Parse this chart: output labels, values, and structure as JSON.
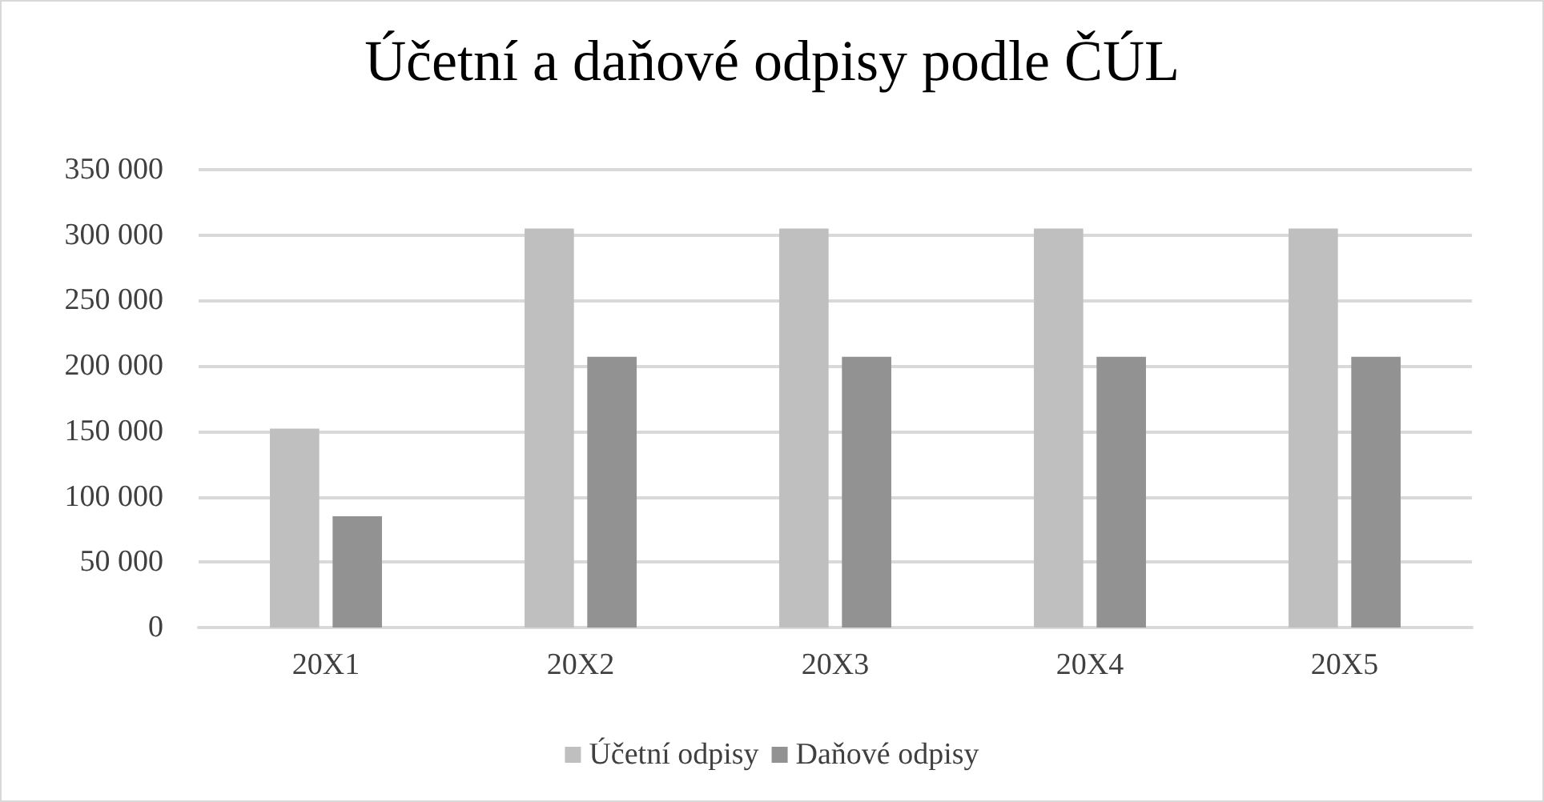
{
  "chart_data": {
    "type": "bar",
    "title": "Účetní a daňové odpisy podle ČÚL",
    "categories": [
      "20X1",
      "20X2",
      "20X3",
      "20X4",
      "20X5"
    ],
    "series": [
      {
        "name": "Účetní odpisy",
        "color": "#bfbfbf",
        "values": [
          152000,
          305000,
          305000,
          305000,
          305000
        ]
      },
      {
        "name": "Daňové odpisy",
        "color": "#929292",
        "values": [
          85000,
          207000,
          207000,
          207000,
          207000
        ]
      }
    ],
    "ylim": [
      0,
      350000
    ],
    "yticks": [
      {
        "value": 0,
        "label": "0"
      },
      {
        "value": 50000,
        "label": "50 000"
      },
      {
        "value": 100000,
        "label": "100 000"
      },
      {
        "value": 150000,
        "label": "150 000"
      },
      {
        "value": 200000,
        "label": "200 000"
      },
      {
        "value": 250000,
        "label": "250 000"
      },
      {
        "value": 300000,
        "label": "300 000"
      },
      {
        "value": 350000,
        "label": "350 000"
      }
    ],
    "grid": "y",
    "legend": "bottom"
  }
}
